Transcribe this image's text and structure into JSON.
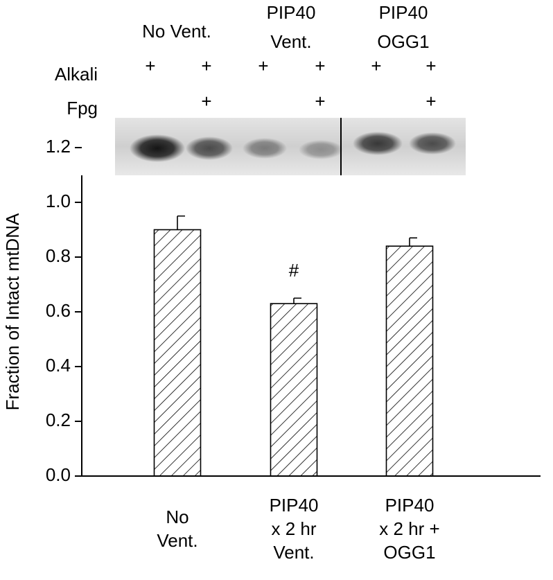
{
  "chart_data": {
    "type": "bar",
    "y_label": "Fraction of Intact mtDNA",
    "categories": [
      [
        "No",
        "Vent."
      ],
      [
        "PIP40",
        "x 2 hr",
        "Vent."
      ],
      [
        "PIP40",
        "x 2 hr +",
        "OGG1"
      ]
    ],
    "values": [
      0.9,
      0.63,
      0.84
    ],
    "errors": [
      0.05,
      0.02,
      0.03
    ],
    "annotations": [
      null,
      "#",
      null
    ],
    "color": "#000000",
    "hatch": true,
    "ylim": [
      0,
      1.2
    ],
    "yticks": [
      {
        "value": 0,
        "label": "0.0"
      },
      0.2,
      0.4,
      0.6,
      0.8,
      {
        "value": 1,
        "label": "1.0"
      },
      1.2
    ],
    "gel": {
      "groups": [
        [
          "No Vent."
        ],
        [
          "PIP40",
          "Vent."
        ],
        [
          "PIP40",
          "OGG1"
        ]
      ],
      "rows": [
        {
          "label": "Alkali",
          "marks": [
            "+",
            "+",
            "+",
            "+",
            "+",
            "+"
          ]
        },
        {
          "label": "Fpg",
          "marks": [
            null,
            "+",
            null,
            "+",
            null,
            "+"
          ]
        }
      ]
    }
  }
}
